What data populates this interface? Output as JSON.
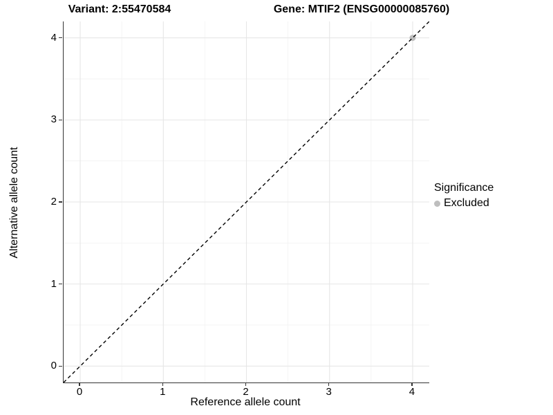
{
  "titles": {
    "variant": "Variant: 2:55470584",
    "gene": "Gene: MTIF2 (ENSG00000085760)"
  },
  "axes": {
    "x": {
      "label": "Reference allele count",
      "tick_labels": [
        "0",
        "1",
        "2",
        "3",
        "4"
      ]
    },
    "y": {
      "label": "Alternative allele count",
      "tick_labels": [
        "0",
        "1",
        "2",
        "3",
        "4"
      ]
    }
  },
  "legend": {
    "title": "Significance",
    "items": [
      {
        "label": "Excluded",
        "color": "#bebebe"
      }
    ]
  },
  "colors": {
    "background": "#ffffff",
    "axis_line": "#333333",
    "grid_major": "#e6e6e6",
    "grid_minor": "#f2f2f2",
    "reference_line": "#000000",
    "excluded_point": "#bebebe",
    "text": "#000000"
  },
  "chart_data": {
    "type": "scatter",
    "title": "Variant: 2:55470584  /  Gene: MTIF2 (ENSG00000085760)",
    "xlabel": "Reference allele count",
    "ylabel": "Alternative allele count",
    "xlim": [
      -0.2,
      4.2
    ],
    "ylim": [
      -0.2,
      4.2
    ],
    "x_ticks": [
      0,
      1,
      2,
      3,
      4
    ],
    "y_ticks": [
      0,
      1,
      2,
      3,
      4
    ],
    "grid_major": [
      0,
      1,
      2,
      3,
      4
    ],
    "grid_minor": [
      0.5,
      1.5,
      2.5,
      3.5
    ],
    "grid": "major+minor",
    "legend_position": "right",
    "series": [
      {
        "name": "Excluded",
        "color": "#bebebe",
        "marker": "circle",
        "points": [
          {
            "x": 4,
            "y": 4
          }
        ]
      }
    ],
    "reference_line": {
      "kind": "identity y=x",
      "from": [
        -0.2,
        -0.2
      ],
      "to": [
        4.2,
        4.2
      ],
      "style": "dashed",
      "color": "#000000"
    }
  }
}
